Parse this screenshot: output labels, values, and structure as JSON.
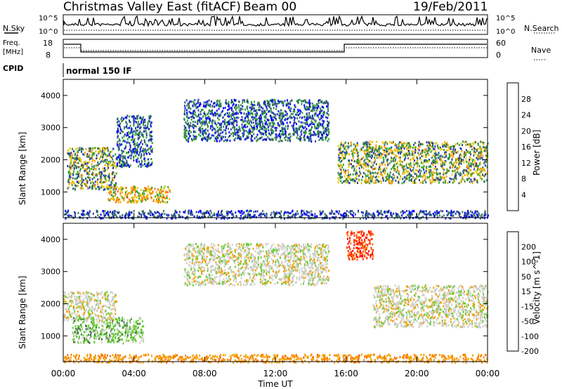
{
  "header": {
    "title": "Christmas Valley East (fitACF)",
    "beam": "Beam 00",
    "date": "19/Feb/2011"
  },
  "panels": {
    "nsky_label": "N.Sky",
    "nsky_ticks": [
      "10^5",
      "10^0"
    ],
    "nsearch_label": "N.Search",
    "nsearch_ticks": [
      "10^5",
      "10^0"
    ],
    "freq_label": "Freq.",
    "freq_unit": "[MHz]",
    "freq_ticks": [
      "18",
      "8"
    ],
    "nave_label": "Nave",
    "nave_ticks": [
      "60",
      "0"
    ],
    "cpid_label": "CPID",
    "cpid_value": "normal 150 IF"
  },
  "chart_data": [
    {
      "type": "heatmap",
      "panel": "power",
      "ylabel": "Slant Range [km]",
      "yticks": [
        "1000",
        "2000",
        "3000",
        "4000"
      ],
      "ylim": [
        200,
        4500
      ],
      "xlim": [
        0,
        24
      ],
      "colorbar_label": "Power [dB]",
      "colorbar_ticks": [
        "28",
        "24",
        "20",
        "16",
        "12",
        "8",
        "4"
      ],
      "colors": [
        "#ff0000",
        "#ff6a00",
        "#ffa000",
        "#e6c800",
        "#2fa22f",
        "#3c7a5a",
        "#283fa0",
        "#0000ff"
      ],
      "echo_regions": [
        {
          "t": [
            0.2,
            3.0
          ],
          "range": [
            1100,
            2400
          ],
          "level": "medium-high"
        },
        {
          "t": [
            2.5,
            6.0
          ],
          "range": [
            700,
            1200
          ],
          "level": "high"
        },
        {
          "t": [
            3.0,
            5.0
          ],
          "range": [
            1800,
            3400
          ],
          "level": "low-medium"
        },
        {
          "t": [
            6.8,
            15.0
          ],
          "range": [
            2600,
            3900
          ],
          "level": "low-medium"
        },
        {
          "t": [
            15.5,
            24.0
          ],
          "range": [
            1300,
            2600
          ],
          "level": "medium-high"
        },
        {
          "t": [
            0.0,
            24.0
          ],
          "range": [
            200,
            450
          ],
          "level": "low"
        }
      ]
    },
    {
      "type": "heatmap",
      "panel": "velocity",
      "ylabel": "Slant Range [km]",
      "yticks": [
        "1000",
        "2000",
        "3000",
        "4000"
      ],
      "ylim": [
        200,
        4500
      ],
      "xlim": [
        0,
        24
      ],
      "xticks": [
        "00:00",
        "04:00",
        "08:00",
        "12:00",
        "16:00",
        "20:00",
        "00:00"
      ],
      "xlabel": "Time UT",
      "colorbar_label": "Velocity [m s^-1]",
      "colorbar_ticks": [
        "200",
        "100",
        "50",
        "15",
        "-15",
        "-50",
        "-100",
        "-200"
      ],
      "colors": [
        "#2a3ca0",
        "#3a7a3a",
        "#66cc33",
        "#cfd0c8",
        "#f3a000",
        "#ff7000",
        "#ff3000",
        "#ff0000"
      ],
      "echo_regions": [
        {
          "t": [
            0.5,
            4.5
          ],
          "range": [
            800,
            1600
          ],
          "level": "positive"
        },
        {
          "t": [
            0.0,
            3.0
          ],
          "range": [
            1500,
            2400
          ],
          "level": "near-zero"
        },
        {
          "t": [
            6.8,
            15.0
          ],
          "range": [
            2600,
            3900
          ],
          "level": "near-zero"
        },
        {
          "t": [
            16.0,
            17.5
          ],
          "range": [
            3400,
            4300
          ],
          "level": "negative"
        },
        {
          "t": [
            17.5,
            24.0
          ],
          "range": [
            1300,
            2600
          ],
          "level": "near-zero"
        },
        {
          "t": [
            0.0,
            24.0
          ],
          "range": [
            200,
            450
          ],
          "level": "negative-small"
        }
      ]
    }
  ]
}
